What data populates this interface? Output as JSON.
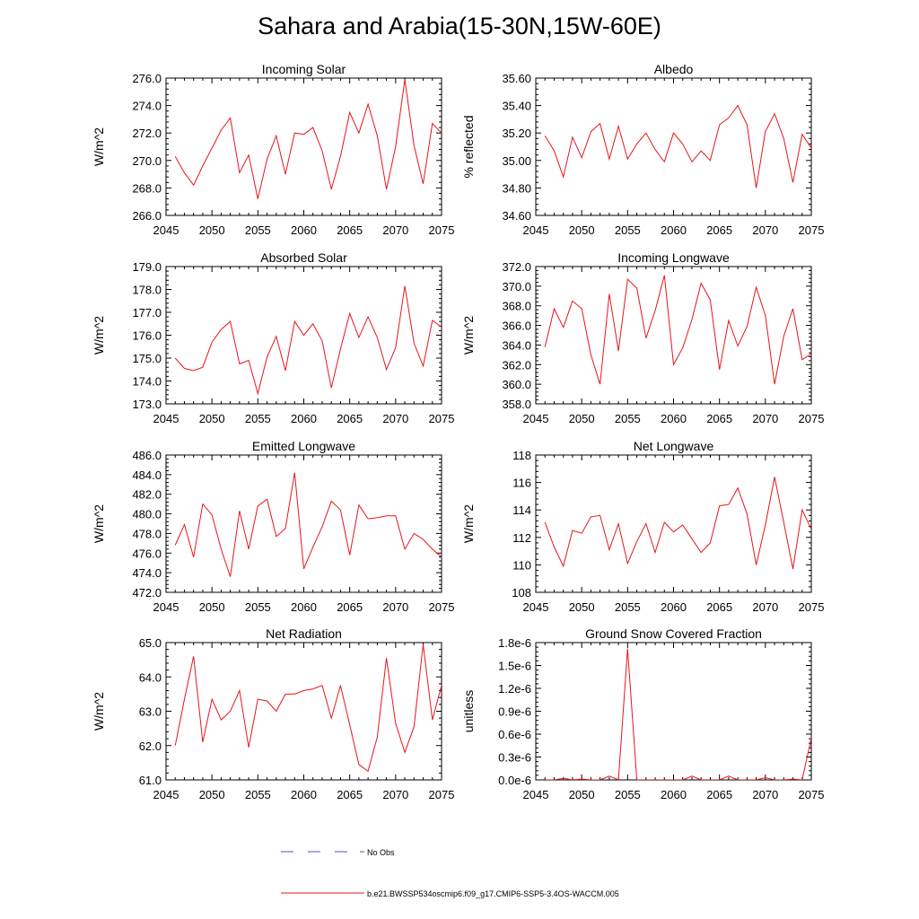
{
  "title": "Sahara and Arabia(15-30N,15W-60E)",
  "colors": {
    "model_line": "#e8141b",
    "obs_line": "#4a56b8",
    "axis": "#000000"
  },
  "legend": {
    "obs_label": "No Obs",
    "model_label": "b.e21.BWSSP534oscmip6.f09_g17.CMIP6-SSP5-3.4OS-WACCM.005"
  },
  "chart_data": [
    {
      "type": "line",
      "title": "Incoming Solar",
      "ylabel": "W/m^2",
      "xlabel": "",
      "xlim": [
        2045,
        2075
      ],
      "ylim": [
        266.0,
        276.0
      ],
      "xticks": [
        "2045",
        "2050",
        "2055",
        "2060",
        "2065",
        "2070",
        "2075"
      ],
      "yticks": [
        "266.0",
        "268.0",
        "270.0",
        "272.0",
        "274.0",
        "276.0"
      ],
      "ytick_values": [
        266,
        268,
        270,
        272,
        274,
        276
      ],
      "x": [
        2046,
        2047,
        2048,
        2049,
        2050,
        2051,
        2052,
        2053,
        2054,
        2055,
        2056,
        2057,
        2058,
        2059,
        2060,
        2061,
        2062,
        2063,
        2064,
        2065,
        2066,
        2067,
        2068,
        2069,
        2070,
        2071,
        2072,
        2073,
        2074,
        2075
      ],
      "values": [
        270.3,
        269.1,
        268.2,
        269.6,
        270.9,
        272.2,
        273.1,
        269.1,
        270.4,
        267.2,
        270.1,
        271.8,
        269.0,
        272.0,
        271.9,
        272.4,
        270.7,
        267.9,
        270.3,
        273.5,
        272.0,
        274.1,
        271.8,
        267.9,
        271.0,
        275.9,
        271.1,
        268.3,
        272.7,
        272.0
      ]
    },
    {
      "type": "line",
      "title": "Albedo",
      "ylabel": "% reflected",
      "xlabel": "",
      "xlim": [
        2045,
        2075
      ],
      "ylim": [
        34.6,
        35.6
      ],
      "xticks": [
        "2045",
        "2050",
        "2055",
        "2060",
        "2065",
        "2070",
        "2075"
      ],
      "yticks": [
        "34.60",
        "34.80",
        "35.00",
        "35.20",
        "35.40",
        "35.60"
      ],
      "ytick_values": [
        34.6,
        34.8,
        35.0,
        35.2,
        35.4,
        35.6
      ],
      "x": [
        2046,
        2047,
        2048,
        2049,
        2050,
        2051,
        2052,
        2053,
        2054,
        2055,
        2056,
        2057,
        2058,
        2059,
        2060,
        2061,
        2062,
        2063,
        2064,
        2065,
        2066,
        2067,
        2068,
        2069,
        2070,
        2071,
        2072,
        2073,
        2074,
        2075
      ],
      "values": [
        35.18,
        35.07,
        34.88,
        35.17,
        35.02,
        35.21,
        35.27,
        35.01,
        35.25,
        35.01,
        35.12,
        35.2,
        35.08,
        34.99,
        35.2,
        35.12,
        34.99,
        35.07,
        35.0,
        35.26,
        35.31,
        35.4,
        35.26,
        34.8,
        35.21,
        35.34,
        35.16,
        34.84,
        35.19,
        35.09
      ]
    },
    {
      "type": "line",
      "title": "Absorbed Solar",
      "ylabel": "W/m^2",
      "xlabel": "",
      "xlim": [
        2045,
        2075
      ],
      "ylim": [
        173.0,
        179.0
      ],
      "xticks": [
        "2045",
        "2050",
        "2055",
        "2060",
        "2065",
        "2070",
        "2075"
      ],
      "yticks": [
        "173.0",
        "174.0",
        "175.0",
        "176.0",
        "177.0",
        "178.0",
        "179.0"
      ],
      "ytick_values": [
        173,
        174,
        175,
        176,
        177,
        178,
        179
      ],
      "x": [
        2046,
        2047,
        2048,
        2049,
        2050,
        2051,
        2052,
        2053,
        2054,
        2055,
        2056,
        2057,
        2058,
        2059,
        2060,
        2061,
        2062,
        2063,
        2064,
        2065,
        2066,
        2067,
        2068,
        2069,
        2070,
        2071,
        2072,
        2073,
        2074,
        2075
      ],
      "values": [
        175.0,
        174.55,
        174.45,
        174.6,
        175.7,
        176.25,
        176.6,
        174.75,
        174.9,
        173.45,
        175.05,
        175.95,
        174.45,
        176.6,
        176.0,
        176.5,
        175.75,
        173.7,
        175.4,
        176.95,
        175.9,
        176.8,
        175.9,
        174.5,
        175.45,
        178.15,
        175.65,
        174.65,
        176.65,
        176.35
      ]
    },
    {
      "type": "line",
      "title": "Incoming Longwave",
      "ylabel": "W/m^2",
      "xlabel": "",
      "xlim": [
        2045,
        2075
      ],
      "ylim": [
        358.0,
        372.0
      ],
      "xticks": [
        "2045",
        "2050",
        "2055",
        "2060",
        "2065",
        "2070",
        "2075"
      ],
      "yticks": [
        "358.0",
        "360.0",
        "362.0",
        "364.0",
        "366.0",
        "368.0",
        "370.0",
        "372.0"
      ],
      "ytick_values": [
        358,
        360,
        362,
        364,
        366,
        368,
        370,
        372
      ],
      "x": [
        2046,
        2047,
        2048,
        2049,
        2050,
        2051,
        2052,
        2053,
        2054,
        2055,
        2056,
        2057,
        2058,
        2059,
        2060,
        2061,
        2062,
        2063,
        2064,
        2065,
        2066,
        2067,
        2068,
        2069,
        2070,
        2071,
        2072,
        2073,
        2074,
        2075
      ],
      "values": [
        363.8,
        367.7,
        365.8,
        368.5,
        367.7,
        363.0,
        360.0,
        369.2,
        363.4,
        370.7,
        369.8,
        364.7,
        367.5,
        371.1,
        362.0,
        363.7,
        366.6,
        370.3,
        368.6,
        361.5,
        366.5,
        363.9,
        365.9,
        369.9,
        367.0,
        360.0,
        364.9,
        367.7,
        362.5,
        363.1
      ]
    },
    {
      "type": "line",
      "title": "Emitted Longwave",
      "ylabel": "W/m^2",
      "xlabel": "",
      "xlim": [
        2045,
        2075
      ],
      "ylim": [
        472.0,
        486.0
      ],
      "xticks": [
        "2045",
        "2050",
        "2055",
        "2060",
        "2065",
        "2070",
        "2075"
      ],
      "yticks": [
        "472.0",
        "474.0",
        "476.0",
        "478.0",
        "480.0",
        "482.0",
        "484.0",
        "486.0"
      ],
      "ytick_values": [
        472,
        474,
        476,
        478,
        480,
        482,
        484,
        486
      ],
      "x": [
        2046,
        2047,
        2048,
        2049,
        2050,
        2051,
        2052,
        2053,
        2054,
        2055,
        2056,
        2057,
        2058,
        2059,
        2060,
        2061,
        2062,
        2063,
        2064,
        2065,
        2066,
        2067,
        2068,
        2069,
        2070,
        2071,
        2072,
        2073,
        2074,
        2075
      ],
      "values": [
        476.8,
        478.9,
        475.6,
        481.0,
        479.9,
        476.4,
        473.6,
        480.3,
        476.4,
        480.8,
        481.5,
        477.7,
        478.5,
        484.2,
        474.4,
        476.6,
        478.7,
        481.3,
        480.4,
        475.8,
        480.9,
        479.5,
        479.6,
        479.8,
        479.8,
        476.4,
        478.0,
        477.4,
        476.4,
        475.6
      ]
    },
    {
      "type": "line",
      "title": "Net Longwave",
      "ylabel": "W/m^2",
      "xlabel": "",
      "xlim": [
        2045,
        2075
      ],
      "ylim": [
        108,
        118
      ],
      "xticks": [
        "2045",
        "2050",
        "2055",
        "2060",
        "2065",
        "2070",
        "2075"
      ],
      "yticks": [
        "108",
        "110",
        "112",
        "114",
        "116",
        "118"
      ],
      "ytick_values": [
        108,
        110,
        112,
        114,
        116,
        118
      ],
      "x": [
        2046,
        2047,
        2048,
        2049,
        2050,
        2051,
        2052,
        2053,
        2054,
        2055,
        2056,
        2057,
        2058,
        2059,
        2060,
        2061,
        2062,
        2063,
        2064,
        2065,
        2066,
        2067,
        2068,
        2069,
        2070,
        2071,
        2072,
        2073,
        2074,
        2075
      ],
      "values": [
        113.1,
        111.3,
        109.9,
        112.5,
        112.3,
        113.5,
        113.6,
        111.1,
        113.0,
        110.1,
        111.7,
        113.0,
        110.9,
        113.1,
        112.4,
        112.9,
        111.9,
        110.9,
        111.6,
        114.3,
        114.4,
        115.6,
        113.7,
        110.0,
        112.9,
        116.4,
        113.1,
        109.7,
        114.0,
        112.6
      ]
    },
    {
      "type": "line",
      "title": "Net Radiation",
      "ylabel": "W/m^2",
      "xlabel": "",
      "xlim": [
        2045,
        2075
      ],
      "ylim": [
        61.0,
        65.0
      ],
      "xticks": [
        "2045",
        "2050",
        "2055",
        "2060",
        "2065",
        "2070",
        "2075"
      ],
      "yticks": [
        "61.0",
        "62.0",
        "63.0",
        "64.0",
        "65.0"
      ],
      "ytick_values": [
        61,
        62,
        63,
        64,
        65
      ],
      "x": [
        2046,
        2047,
        2048,
        2049,
        2050,
        2051,
        2052,
        2053,
        2054,
        2055,
        2056,
        2057,
        2058,
        2059,
        2060,
        2061,
        2062,
        2063,
        2064,
        2065,
        2066,
        2067,
        2068,
        2069,
        2070,
        2071,
        2072,
        2073,
        2074,
        2075
      ],
      "values": [
        62.0,
        63.35,
        64.6,
        62.1,
        63.35,
        62.75,
        63.0,
        63.6,
        61.95,
        63.35,
        63.3,
        63.0,
        63.5,
        63.5,
        63.6,
        63.65,
        63.75,
        62.8,
        63.75,
        62.6,
        61.45,
        61.25,
        62.25,
        64.55,
        62.65,
        61.8,
        62.55,
        64.95,
        62.75,
        63.75
      ]
    },
    {
      "type": "line",
      "title": "Ground Snow Covered Fraction",
      "ylabel": "unitless",
      "xlabel": "",
      "xlim": [
        2045,
        2075
      ],
      "ylim": [
        0.0,
        1.8e-06
      ],
      "xticks": [
        "2045",
        "2050",
        "2055",
        "2060",
        "2065",
        "2070",
        "2075"
      ],
      "yticks": [
        "0.0e-6",
        "0.3e-6",
        "0.6e-6",
        "0.9e-6",
        "1.2e-6",
        "1.5e-6",
        "1.8e-6"
      ],
      "ytick_values": [
        0.0,
        3e-07,
        6e-07,
        9e-07,
        1.2e-06,
        1.5e-06,
        1.8e-06
      ],
      "x": [
        2046,
        2047,
        2048,
        2049,
        2050,
        2051,
        2052,
        2053,
        2054,
        2055,
        2056,
        2057,
        2058,
        2059,
        2060,
        2061,
        2062,
        2063,
        2064,
        2065,
        2066,
        2067,
        2068,
        2069,
        2070,
        2071,
        2072,
        2073,
        2074,
        2075
      ],
      "values": [
        0.0,
        0.0,
        2e-08,
        0.0,
        1e-08,
        0.0,
        0.0,
        5e-08,
        0.0,
        1.72e-06,
        0.0,
        0.0,
        0.0,
        0.0,
        0.0,
        0.0,
        5e-08,
        0.0,
        0.0,
        0.0,
        5e-08,
        0.0,
        0.0,
        0.0,
        3e-08,
        0.0,
        0.0,
        1e-08,
        0.0,
        5.5e-07
      ]
    }
  ]
}
